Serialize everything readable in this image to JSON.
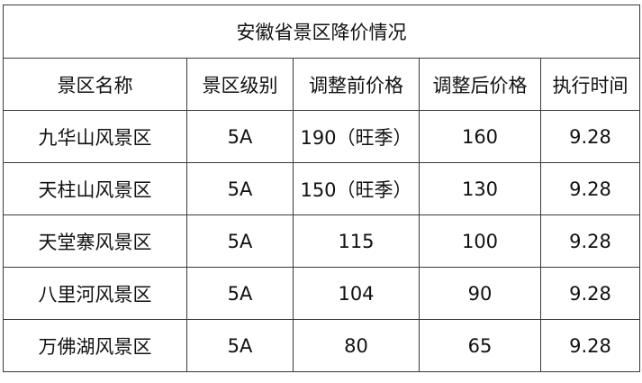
{
  "table": {
    "title": "安徽省景区降价情况",
    "headers": [
      "景区名称",
      "景区级别",
      "调整前价格",
      "调整后价格",
      "执行时间"
    ],
    "rows": [
      [
        "九华山风景区",
        "5A",
        "190（旺季）",
        "160",
        "9.28"
      ],
      [
        "天柱山风景区",
        "5A",
        "150（旺季）",
        "130",
        "9.28"
      ],
      [
        "天堂寨风景区",
        "5A",
        "115",
        "100",
        "9.28"
      ],
      [
        "八里河风景区",
        "5A",
        "104",
        "90",
        "9.28"
      ],
      [
        "万佛湖风景区",
        "5A",
        "80",
        "65",
        "9.28"
      ]
    ]
  }
}
